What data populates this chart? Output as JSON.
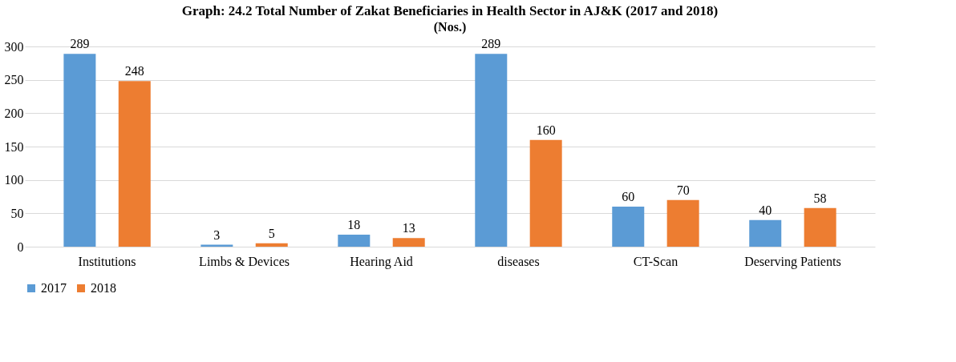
{
  "chart_data": {
    "type": "bar",
    "title": "Graph: 24.2 Total Number of Zakat Beneficiaries in Health Sector in AJ&K (2017 and 2018)",
    "subtitle": "(Nos.)",
    "categories": [
      "Institutions",
      "Limbs & Devices",
      "Hearing Aid",
      "diseases",
      "CT-Scan",
      "Deserving Patients"
    ],
    "series": [
      {
        "name": "2017",
        "color": "#5b9bd5",
        "values": [
          289,
          3,
          18,
          289,
          60,
          40
        ]
      },
      {
        "name": "2018",
        "color": "#ed7d31",
        "values": [
          248,
          5,
          13,
          160,
          70,
          58
        ]
      }
    ],
    "ylim": [
      0,
      300
    ],
    "yticks": [
      0,
      50,
      100,
      150,
      200,
      250,
      300
    ],
    "grid": "y",
    "legend": "bottom",
    "data_labels": true
  }
}
